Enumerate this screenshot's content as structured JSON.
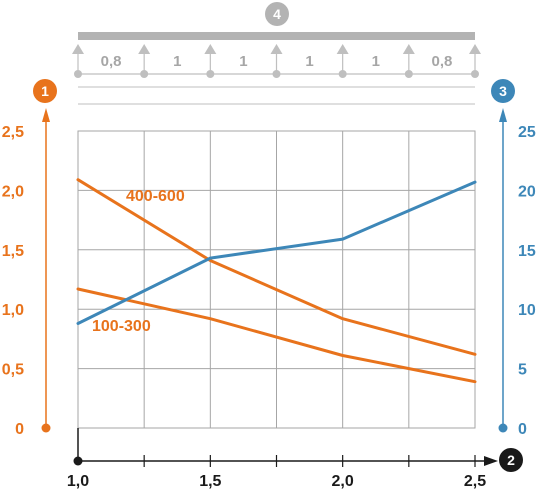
{
  "colors": {
    "orange": "#e8731c",
    "blue": "#3d87b8",
    "black": "#1a1a1a",
    "grid": "#a6a6a6",
    "beam": "#b3b3b3",
    "support": "#bfbfbf",
    "span_text": "#a6a6a6"
  },
  "beam": {
    "badge": "4",
    "span_lengths": [
      "0,8",
      "1",
      "1",
      "1",
      "1",
      "0,8"
    ]
  },
  "chart_data": {
    "type": "line",
    "x_axis": {
      "badge": "2",
      "ticks": [
        1.0,
        1.5,
        2.0,
        2.5
      ],
      "tick_labels": [
        "1,0",
        "1,5",
        "2,0",
        "2,5"
      ],
      "range": [
        1.0,
        2.5
      ],
      "minor_ticks": [
        1.25,
        1.75,
        2.25
      ]
    },
    "y_left": {
      "badge": "1",
      "range": [
        0,
        2.5
      ],
      "ticks": [
        0,
        0.5,
        1.0,
        1.5,
        2.0,
        2.5
      ],
      "tick_labels": [
        "0",
        "0,5",
        "1,0",
        "1,5",
        "2,0",
        "2,5"
      ]
    },
    "y_right": {
      "badge": "3",
      "range": [
        0,
        25
      ],
      "ticks": [
        0,
        5,
        10,
        15,
        20,
        25
      ],
      "tick_labels": [
        "0",
        "5",
        "10",
        "15",
        "20",
        "25"
      ]
    },
    "grid": true,
    "series": [
      {
        "name": "400-600",
        "axis": "left",
        "color": "orange",
        "points": [
          [
            1.0,
            2.09
          ],
          [
            1.5,
            1.41
          ],
          [
            2.0,
            0.92
          ],
          [
            2.5,
            0.62
          ]
        ]
      },
      {
        "name": "100-300",
        "axis": "left",
        "color": "orange",
        "points": [
          [
            1.0,
            1.17
          ],
          [
            1.5,
            0.92
          ],
          [
            2.0,
            0.61
          ],
          [
            2.5,
            0.39
          ]
        ]
      },
      {
        "name": "",
        "axis": "right",
        "color": "blue",
        "points": [
          [
            1.0,
            8.8
          ],
          [
            1.5,
            14.3
          ],
          [
            2.0,
            15.9
          ],
          [
            2.5,
            20.7
          ]
        ]
      }
    ]
  }
}
